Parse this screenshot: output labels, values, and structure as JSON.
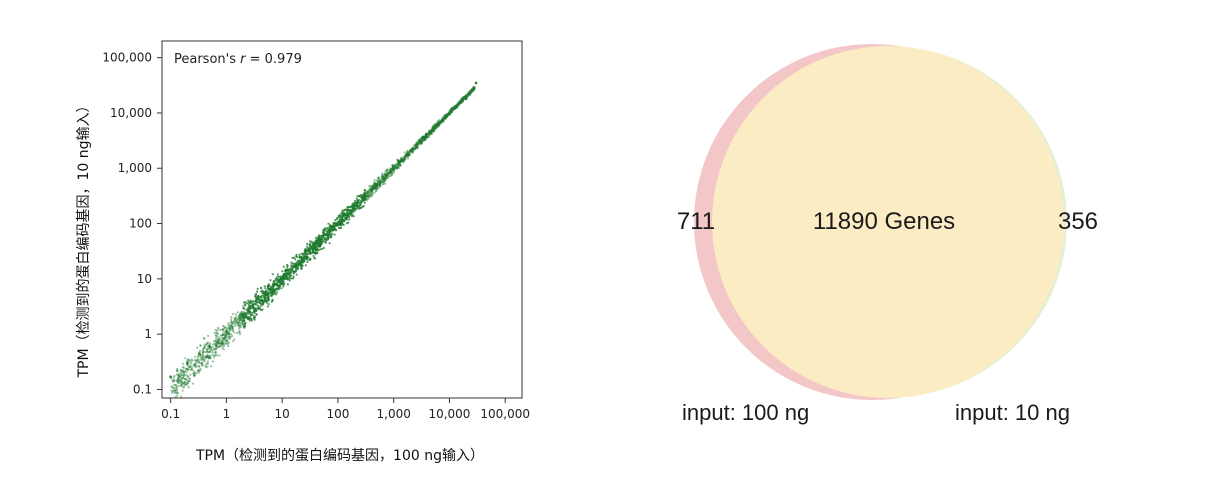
{
  "chart_data": [
    {
      "type": "scatter",
      "xlabel": "TPM（检测到的蛋白编码基因，100 ng输入）",
      "ylabel": "TPM（检测到的蛋白编码基因，10 ng输入）",
      "xscale": "log",
      "yscale": "log",
      "xlim": [
        0.07,
        200000
      ],
      "ylim": [
        0.07,
        200000
      ],
      "x_ticks": [
        "0.1",
        "1",
        "10",
        "100",
        "1,000",
        "10,000",
        "100,000"
      ],
      "y_ticks": [
        "0.1",
        "1",
        "10",
        "100",
        "1,000",
        "10,000",
        "100,000"
      ],
      "annotation": {
        "prefix": "Pearson's ",
        "variable": "r",
        "suffix": " = 0.979"
      },
      "point_color": "#1e7a2e",
      "series": [
        {
          "points": [
            [
              0.1,
              0.17
            ],
            [
              0.2,
              0.3
            ],
            [
              0.5,
              0.6
            ],
            [
              1,
              1.1
            ],
            [
              2,
              2.3
            ],
            [
              3,
              3.2
            ],
            [
              5,
              5.5
            ],
            [
              10,
              10.5
            ],
            [
              20,
              19
            ],
            [
              50,
              52
            ],
            [
              100,
              98
            ],
            [
              200,
              210
            ],
            [
              500,
              480
            ],
            [
              1000,
              1050
            ],
            [
              2000,
              2100
            ],
            [
              5000,
              4800
            ],
            [
              10000,
              9500
            ],
            [
              20000,
              18000
            ],
            [
              30000,
              35000
            ]
          ]
        }
      ]
    },
    {
      "type": "venn",
      "sets": [
        {
          "label": "input: 100 ng",
          "only": "711",
          "color": "#f3c6c8"
        },
        {
          "label": "input: 10 ng",
          "only": "356",
          "color": "#e4f0d4"
        }
      ],
      "intersection": "11890 Genes",
      "intersection_color": "#fbecc4"
    }
  ]
}
